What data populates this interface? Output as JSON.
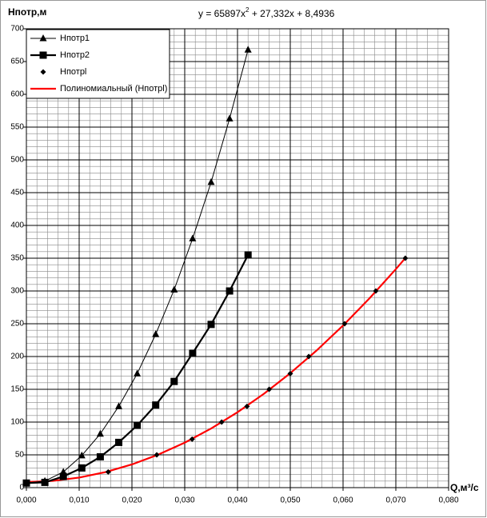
{
  "chart_data": {
    "type": "line",
    "ylabel": "Нпотр,м",
    "xlabel": "Q,м³/с",
    "equation": [
      "y = 65897x",
      "2",
      " + 27,332x + 8,4936"
    ],
    "xlim": [
      0,
      0.08
    ],
    "ylim": [
      0,
      700
    ],
    "xticks": [
      {
        "value": 0,
        "label": "0,000"
      },
      {
        "value": 0.01,
        "label": "0,010"
      },
      {
        "value": 0.02,
        "label": "0,020"
      },
      {
        "value": 0.03,
        "label": "0,030"
      },
      {
        "value": 0.04,
        "label": "0,040"
      },
      {
        "value": 0.05,
        "label": "0,050"
      },
      {
        "value": 0.06,
        "label": "0,060"
      },
      {
        "value": 0.07,
        "label": "0,070"
      },
      {
        "value": 0.08,
        "label": "0,080"
      }
    ],
    "yticks": [
      0,
      50,
      100,
      150,
      200,
      250,
      300,
      350,
      400,
      450,
      500,
      550,
      600,
      650,
      700
    ],
    "grid": true,
    "minor_grid": true,
    "legend": "upper left",
    "series": [
      {
        "name": "Нпотр1",
        "color": "#000000",
        "marker": "triangle",
        "line": "thin",
        "x": [
          0,
          0.0035,
          0.007,
          0.0105,
          0.014,
          0.0175,
          0.021,
          0.0245,
          0.028,
          0.0315,
          0.035,
          0.0385,
          0.042
        ],
        "values": [
          7,
          10,
          24,
          49,
          82,
          124,
          174,
          234,
          302,
          380,
          466,
          563,
          668
        ]
      },
      {
        "name": "Нпотр2",
        "color": "#000000",
        "marker": "square",
        "line": "thick",
        "x": [
          0,
          0.0035,
          0.007,
          0.0105,
          0.014,
          0.0175,
          0.021,
          0.0245,
          0.028,
          0.0315,
          0.035,
          0.0385,
          0.042
        ],
        "values": [
          7,
          8,
          17,
          30,
          47,
          69,
          95,
          126,
          162,
          205,
          249,
          300,
          355
        ]
      },
      {
        "name": "Нпотрl",
        "color": "#000000",
        "marker": "diamond",
        "line": "none",
        "x": [
          0,
          0.0155,
          0.0247,
          0.0314,
          0.037,
          0.0418,
          0.046,
          0.05,
          0.0535,
          0.0603,
          0.0662,
          0.0718
        ],
        "values": [
          8,
          24,
          50,
          74,
          100,
          124,
          150,
          174,
          200,
          250,
          300,
          350
        ]
      },
      {
        "name": "Полиномиальный (Нпотрl)",
        "color": "#ff0000",
        "marker": "none",
        "line": "thick",
        "x": [
          0,
          0.005,
          0.01,
          0.015,
          0.02,
          0.025,
          0.03,
          0.035,
          0.04,
          0.045,
          0.05,
          0.055,
          0.06,
          0.065,
          0.07,
          0.072
        ],
        "values": [
          8.49,
          10.3,
          15.35,
          23.7,
          35.4,
          50.4,
          68.6,
          90.2,
          115.0,
          143.1,
          174.6,
          209.3,
          247.3,
          288.7,
          333.3,
          352.1
        ]
      }
    ]
  }
}
